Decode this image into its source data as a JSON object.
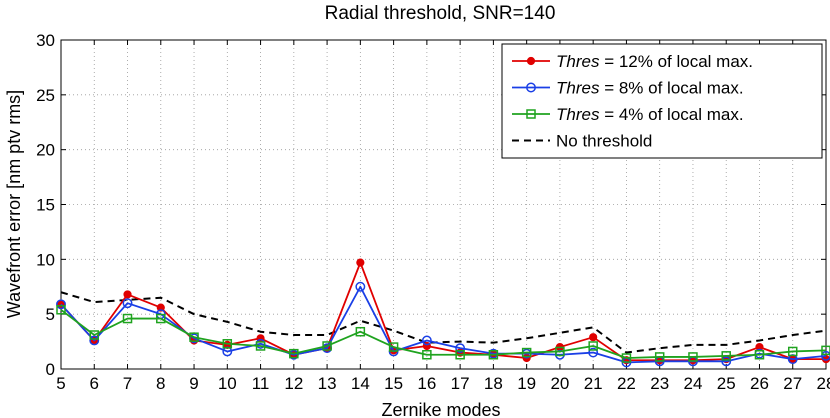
{
  "chart_data": {
    "type": "line",
    "title": "Radial threshold, SNR=140",
    "xlabel": "Zernike modes",
    "ylabel": "Wavefront error [nm ptv rms]",
    "xlim": [
      5,
      28
    ],
    "ylim": [
      0,
      30
    ],
    "xticks": [
      5,
      6,
      7,
      8,
      9,
      10,
      11,
      12,
      13,
      14,
      15,
      16,
      17,
      18,
      19,
      20,
      21,
      22,
      23,
      24,
      25,
      26,
      27,
      28
    ],
    "yticks": [
      0,
      5,
      10,
      15,
      20,
      25,
      30
    ],
    "grid": true,
    "legend_position": "top-right",
    "x": [
      5,
      6,
      7,
      8,
      9,
      10,
      11,
      12,
      13,
      14,
      15,
      16,
      17,
      18,
      19,
      20,
      21,
      22,
      23,
      24,
      25,
      26,
      27,
      28
    ],
    "series": [
      {
        "name_italic": "Thres",
        "name_rest": " = 12% of local max.",
        "name": "Thres = 12% of local max.",
        "color": "#e00000",
        "marker": "dot",
        "dash": "solid",
        "values": [
          5.9,
          2.6,
          6.8,
          5.6,
          2.6,
          2.2,
          2.8,
          1.3,
          1.9,
          9.7,
          1.7,
          2.1,
          1.5,
          1.3,
          1.0,
          2.0,
          2.9,
          0.8,
          0.8,
          0.8,
          0.9,
          2.0,
          0.9,
          0.9
        ]
      },
      {
        "name_italic": "Thres",
        "name_rest": " = 8% of local max.",
        "name": "Thres = 8% of local max.",
        "color": "#1a3fe6",
        "marker": "circle",
        "dash": "solid",
        "values": [
          5.9,
          2.6,
          6.0,
          5.0,
          2.8,
          1.6,
          2.3,
          1.3,
          1.9,
          7.5,
          1.6,
          2.6,
          1.9,
          1.4,
          1.4,
          1.3,
          1.5,
          0.6,
          0.7,
          0.7,
          0.7,
          1.4,
          0.9,
          1.2
        ]
      },
      {
        "name_italic": "Thres",
        "name_rest": " = 4% of local max.",
        "name": "Thres = 4% of local max.",
        "color": "#1fa31f",
        "marker": "square",
        "dash": "solid",
        "values": [
          5.4,
          3.1,
          4.6,
          4.6,
          2.9,
          2.3,
          2.1,
          1.4,
          2.1,
          3.4,
          2.0,
          1.3,
          1.3,
          1.3,
          1.5,
          1.6,
          2.1,
          1.0,
          1.1,
          1.1,
          1.2,
          1.3,
          1.6,
          1.7
        ]
      },
      {
        "name_italic": "",
        "name_rest": "No threshold",
        "name": "No threshold",
        "color": "#000000",
        "marker": "none",
        "dash": "dashed",
        "values": [
          7.0,
          6.1,
          6.3,
          6.5,
          5.0,
          4.3,
          3.4,
          3.1,
          3.1,
          4.4,
          3.5,
          2.4,
          2.5,
          2.4,
          2.8,
          3.3,
          3.8,
          1.5,
          1.9,
          2.2,
          2.2,
          2.6,
          3.1,
          3.5
        ]
      }
    ]
  }
}
